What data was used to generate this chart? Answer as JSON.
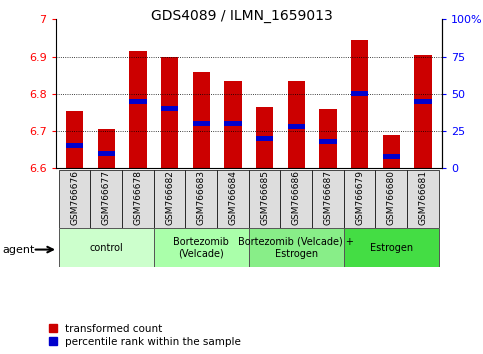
{
  "title": "GDS4089 / ILMN_1659013",
  "samples": [
    "GSM766676",
    "GSM766677",
    "GSM766678",
    "GSM766682",
    "GSM766683",
    "GSM766684",
    "GSM766685",
    "GSM766686",
    "GSM766687",
    "GSM766679",
    "GSM766680",
    "GSM766681"
  ],
  "bar_values": [
    6.755,
    6.705,
    6.915,
    6.9,
    6.86,
    6.835,
    6.765,
    6.835,
    6.76,
    6.945,
    6.69,
    6.905
  ],
  "percentile_values": [
    15,
    10,
    45,
    40,
    30,
    30,
    20,
    28,
    18,
    50,
    8,
    45
  ],
  "bar_color": "#cc0000",
  "percentile_color": "#0000cc",
  "ymin": 6.6,
  "ymax": 7.0,
  "yticks": [
    6.6,
    6.7,
    6.8,
    6.9,
    7.0
  ],
  "ytick_labels": [
    "6.6",
    "6.7",
    "6.8",
    "6.9",
    "7"
  ],
  "right_yticks": [
    0,
    25,
    50,
    75,
    100
  ],
  "right_yticklabels": [
    "0",
    "25",
    "50",
    "75",
    "100%"
  ],
  "group_data": [
    {
      "label": "control",
      "start": 0,
      "end": 2,
      "color": "#ccffcc"
    },
    {
      "label": "Bortezomib\n(Velcade)",
      "start": 3,
      "end": 5,
      "color": "#aaffaa"
    },
    {
      "label": "Bortezomib (Velcade) +\nEstrogen",
      "start": 6,
      "end": 8,
      "color": "#88ee88"
    },
    {
      "label": "Estrogen",
      "start": 9,
      "end": 11,
      "color": "#44dd44"
    }
  ],
  "legend_red": "transformed count",
  "legend_blue": "percentile rank within the sample",
  "agent_label": "agent",
  "bar_width": 0.55,
  "tick_bg_color": "#dddddd"
}
